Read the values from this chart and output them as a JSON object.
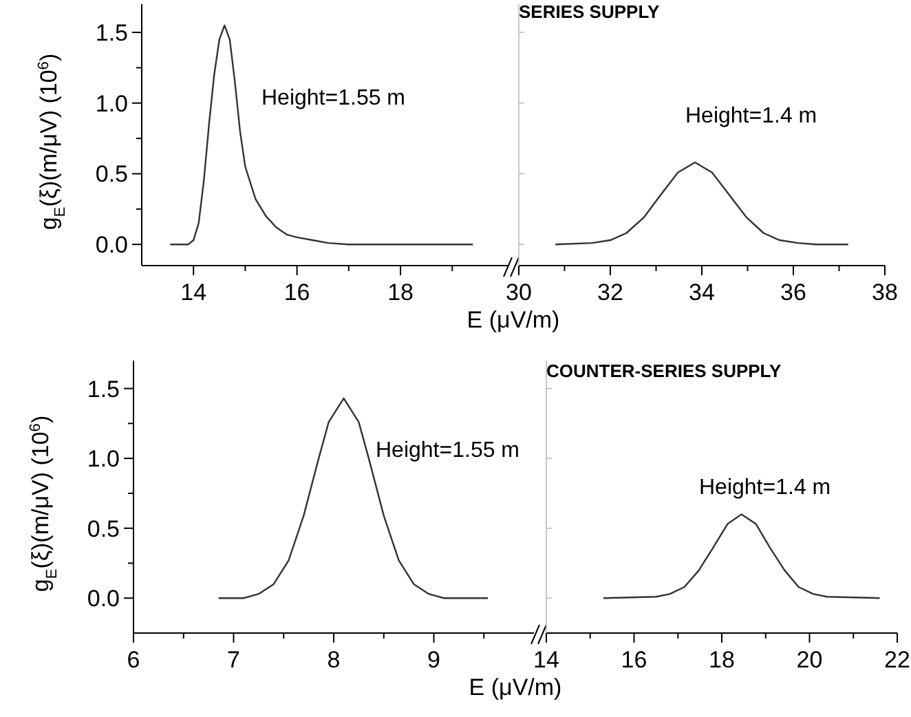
{
  "chart_data": [
    {
      "type": "line",
      "xlabel": "E (μV/m)",
      "ylabel": "g$_{E}$(ξ)(m/μV) (10$^{6}$)",
      "xlim": [
        13,
        20.1
      ],
      "ylim": [
        -0.15,
        1.7
      ],
      "xticks": [
        14,
        16,
        18,
        {
          "value": 15,
          "label": null
        },
        {
          "value": 17,
          "label": null
        },
        {
          "value": 19,
          "label": null
        }
      ],
      "yticks": [
        {
          "value": 0,
          "label": "0.0"
        },
        {
          "value": 0.5,
          "label": "0.5"
        },
        {
          "value": 1,
          "label": "1.0"
        },
        {
          "value": 1.5,
          "label": "1.5"
        },
        {
          "value": 0.25,
          "label": null
        },
        {
          "value": 0.75,
          "label": null
        },
        {
          "value": 1.25,
          "label": null
        }
      ],
      "annotations": [
        "Height=1.55 m"
      ],
      "series": [
        {
          "color": "#333333",
          "x": [
            13.55,
            13.9,
            14.0,
            14.1,
            14.2,
            14.3,
            14.4,
            14.5,
            14.6,
            14.7,
            14.8,
            14.9,
            15.0,
            15.2,
            15.4,
            15.6,
            15.8,
            16.0,
            16.3,
            16.6,
            17.0,
            18.0,
            19.4
          ],
          "values": [
            0,
            0,
            0.03,
            0.15,
            0.45,
            0.85,
            1.2,
            1.45,
            1.55,
            1.45,
            1.15,
            0.8,
            0.55,
            0.32,
            0.2,
            0.12,
            0.07,
            0.05,
            0.03,
            0.01,
            0,
            0,
            0
          ]
        }
      ]
    },
    {
      "type": "line",
      "title": "SERIES SUPPLY",
      "xlim": [
        30,
        38
      ],
      "ylim": [
        -0.15,
        1.7
      ],
      "tick_labels": "x",
      "yticks": [
        {
          "value": 0,
          "label": null
        },
        {
          "value": 0.5,
          "label": null
        },
        {
          "value": 1,
          "label": null
        },
        {
          "value": 1.5,
          "label": null
        }
      ],
      "xticks": [
        30,
        32,
        34,
        36,
        38,
        {
          "value": 31,
          "label": null
        },
        {
          "value": 33,
          "label": null
        },
        {
          "value": 35,
          "label": null
        },
        {
          "value": 37,
          "label": null
        }
      ],
      "annotations": [
        "Height=1.4 m"
      ],
      "series": [
        {
          "color": "#333333",
          "x": [
            30.8,
            31.6,
            32.0,
            32.35,
            32.73,
            33.1,
            33.48,
            33.85,
            34.22,
            34.6,
            34.98,
            35.35,
            35.7,
            36.1,
            36.5,
            37.2
          ],
          "values": [
            0,
            0.01,
            0.03,
            0.08,
            0.19,
            0.35,
            0.51,
            0.58,
            0.51,
            0.35,
            0.19,
            0.08,
            0.03,
            0.01,
            0,
            0
          ]
        }
      ]
    },
    {
      "type": "line",
      "xlabel": "E (μV/m)",
      "ylabel": "g$_{E}$(ξ)(m/μV) (10$^{6}$)",
      "xlim": [
        6,
        10
      ],
      "ylim": [
        -0.25,
        1.7
      ],
      "xticks": [
        6,
        7,
        8,
        9,
        {
          "value": 6.5,
          "label": null
        },
        {
          "value": 7.5,
          "label": null
        },
        {
          "value": 8.5,
          "label": null
        },
        {
          "value": 9.5,
          "label": null
        }
      ],
      "yticks": [
        {
          "value": 0,
          "label": "0.0"
        },
        {
          "value": 0.5,
          "label": "0.5"
        },
        {
          "value": 1,
          "label": "1.0"
        },
        {
          "value": 1.5,
          "label": "1.5"
        },
        {
          "value": 0.25,
          "label": null
        },
        {
          "value": 0.75,
          "label": null
        },
        {
          "value": 1.25,
          "label": null
        }
      ],
      "annotations": [
        "Height=1.55 m"
      ],
      "series": [
        {
          "color": "#333333",
          "x": [
            6.85,
            7.1,
            7.25,
            7.4,
            7.55,
            7.7,
            7.85,
            7.95,
            8.1,
            8.25,
            8.35,
            8.5,
            8.65,
            8.8,
            8.95,
            9.1,
            9.54
          ],
          "values": [
            0,
            0,
            0.03,
            0.1,
            0.27,
            0.59,
            1.0,
            1.26,
            1.43,
            1.26,
            1.0,
            0.59,
            0.27,
            0.1,
            0.03,
            0,
            0
          ]
        }
      ]
    },
    {
      "type": "line",
      "title": "COUNTER-SERIES SUPPLY",
      "xlim": [
        14,
        22
      ],
      "ylim": [
        -0.25,
        1.7
      ],
      "tick_labels": "x",
      "yticks": [
        {
          "value": 0,
          "label": null
        },
        {
          "value": 0.5,
          "label": null
        },
        {
          "value": 1,
          "label": null
        },
        {
          "value": 1.5,
          "label": null
        }
      ],
      "xticks": [
        14,
        16,
        18,
        20,
        22,
        {
          "value": 15,
          "label": null
        },
        {
          "value": 17,
          "label": null
        },
        {
          "value": 19,
          "label": null
        },
        {
          "value": 21,
          "label": null
        }
      ],
      "annotations": [
        "Height=1.4 m"
      ],
      "series": [
        {
          "color": "#333333",
          "x": [
            15.3,
            16.5,
            16.82,
            17.15,
            17.48,
            17.8,
            18.13,
            18.45,
            18.78,
            19.1,
            19.43,
            19.75,
            20.08,
            20.4,
            21.6
          ],
          "values": [
            0,
            0.01,
            0.03,
            0.08,
            0.2,
            0.36,
            0.53,
            0.6,
            0.53,
            0.36,
            0.2,
            0.08,
            0.03,
            0.01,
            0
          ]
        }
      ]
    }
  ]
}
